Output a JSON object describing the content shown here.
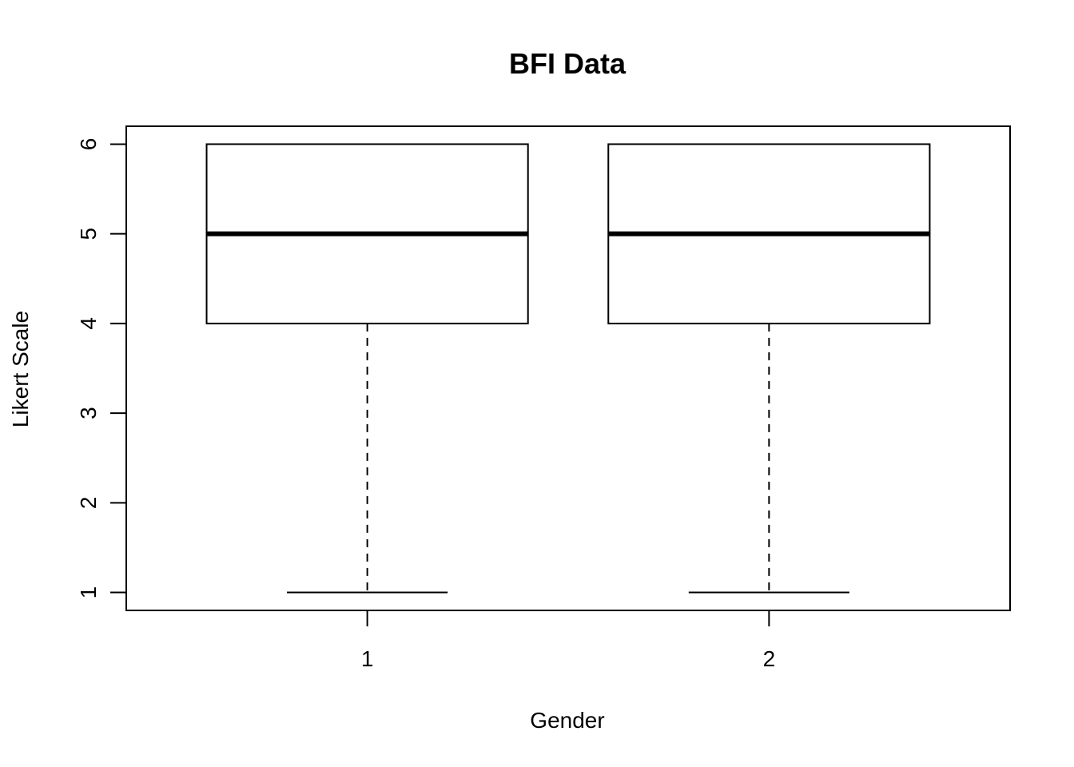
{
  "chart_data": {
    "type": "box",
    "title": "BFI Data",
    "xlabel": "Gender",
    "ylabel": "Likert Scale",
    "categories": [
      "1",
      "2"
    ],
    "ylim": [
      0.8,
      6.2
    ],
    "yticks": [
      1,
      2,
      3,
      4,
      5,
      6
    ],
    "boxes": [
      {
        "category": "1",
        "whisker_low": 1,
        "q1": 4,
        "median": 5,
        "q3": 6,
        "whisker_high": 6
      },
      {
        "category": "2",
        "whisker_low": 1,
        "q1": 4,
        "median": 5,
        "q3": 6,
        "whisker_high": 6
      }
    ],
    "grid": false,
    "legend": "none"
  }
}
